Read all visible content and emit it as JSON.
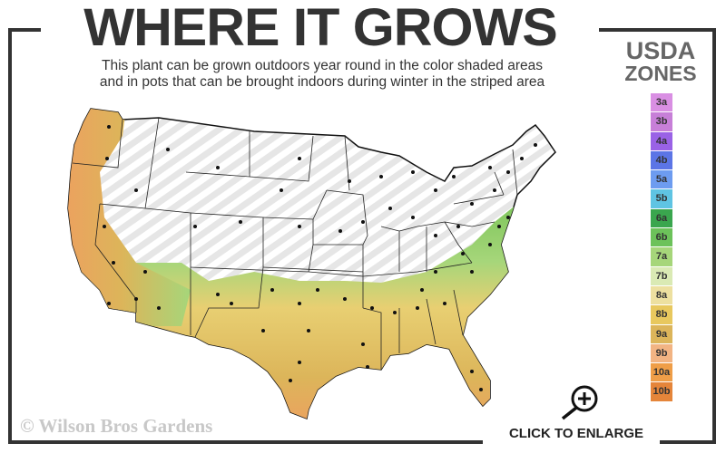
{
  "header": {
    "title": "WHERE IT GROWS",
    "subtitle_line1": "This plant can be grown outdoors year round in the color shaded areas",
    "subtitle_line2": "and in pots that can be brought indoors during winter in the striped area"
  },
  "legend": {
    "title_line1": "USDA",
    "title_line2": "ZONES",
    "zones": [
      {
        "label": "3a",
        "color": "#d98fe3"
      },
      {
        "label": "3b",
        "color": "#c77fd8"
      },
      {
        "label": "4a",
        "color": "#9a62e6"
      },
      {
        "label": "4b",
        "color": "#5c75e6"
      },
      {
        "label": "5a",
        "color": "#6d9cf0"
      },
      {
        "label": "5b",
        "color": "#5fc4e3"
      },
      {
        "label": "6a",
        "color": "#3aa64e"
      },
      {
        "label": "6b",
        "color": "#6cc25a"
      },
      {
        "label": "7a",
        "color": "#a6d67a"
      },
      {
        "label": "7b",
        "color": "#daeab4"
      },
      {
        "label": "8a",
        "color": "#ede0a0"
      },
      {
        "label": "8b",
        "color": "#e8c85e"
      },
      {
        "label": "9a",
        "color": "#dcb55a"
      },
      {
        "label": "9b",
        "color": "#f2b483"
      },
      {
        "label": "10a",
        "color": "#ef9e48"
      },
      {
        "label": "10b",
        "color": "#e5853a"
      }
    ]
  },
  "map": {
    "outdoor_zones": "color shaded",
    "pot_zones": "striped"
  },
  "footer": {
    "copyright": "© Wilson Bros Gardens",
    "enlarge_label": "CLICK TO ENLARGE",
    "enlarge_icon": "zoom-in-icon"
  }
}
